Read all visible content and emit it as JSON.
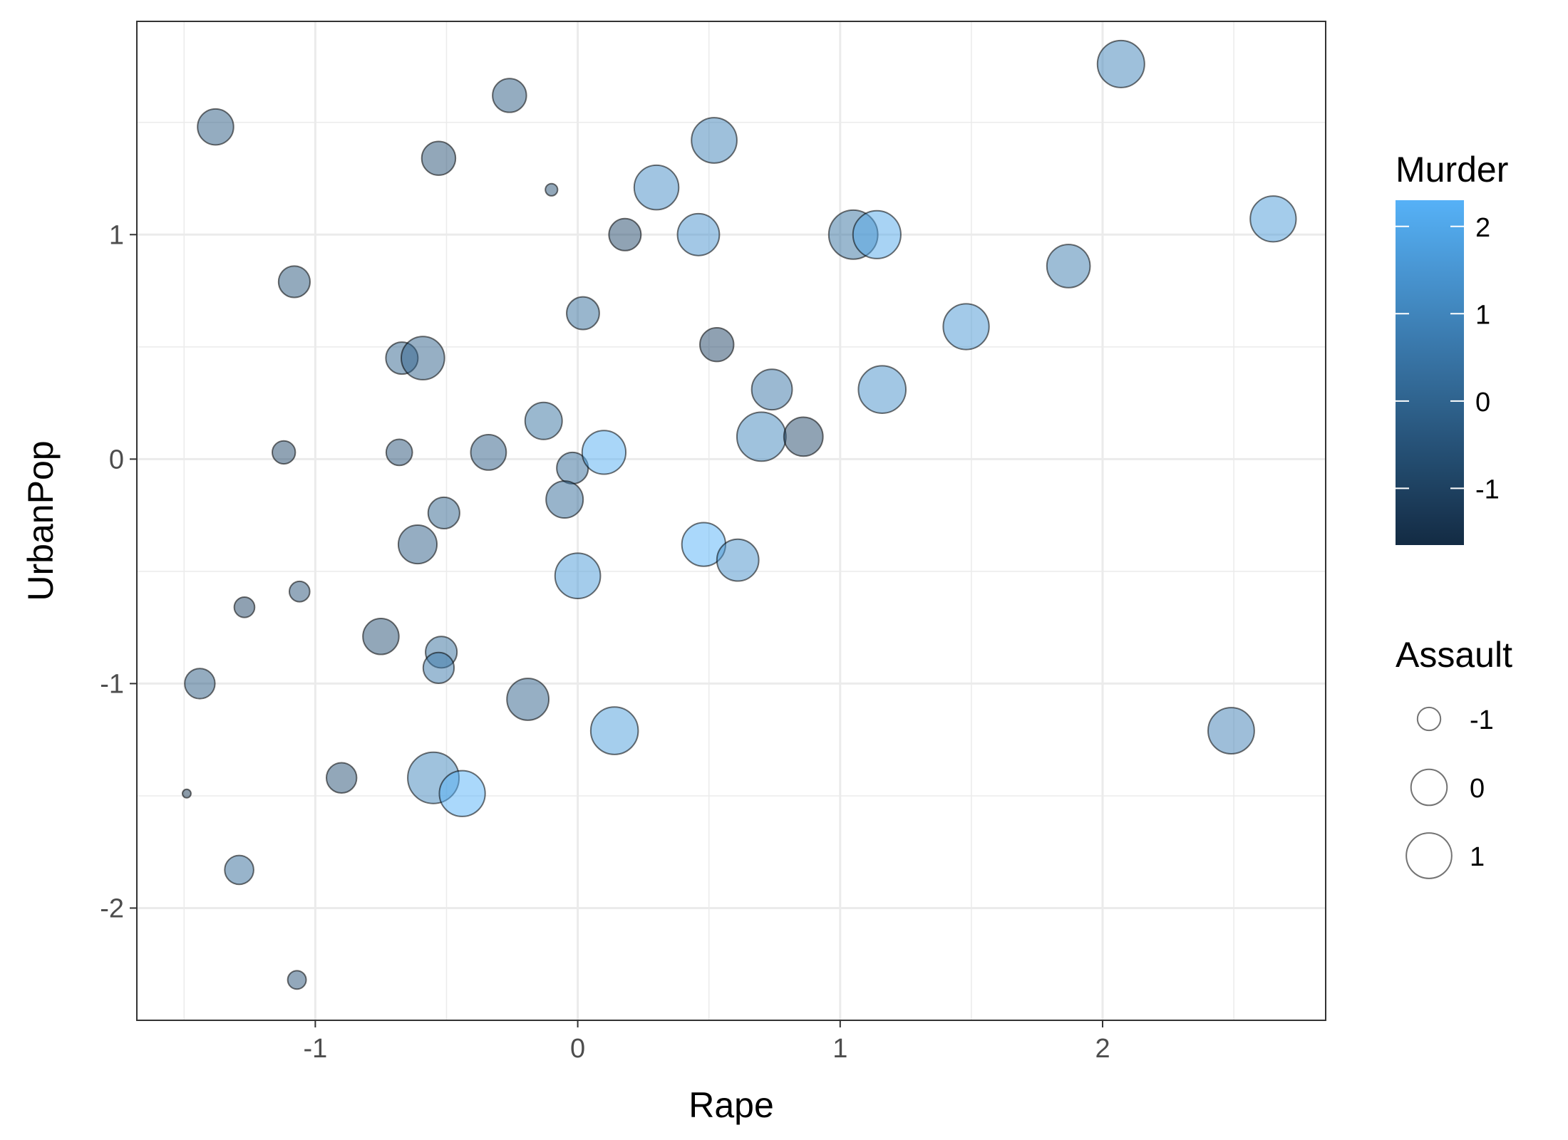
{
  "chart_data": {
    "type": "scatter",
    "xlabel": "Rape",
    "ylabel": "UrbanPop",
    "xlim": [
      -1.68,
      2.85
    ],
    "ylim": [
      -2.5,
      1.95
    ],
    "x_ticks": [
      -1,
      0,
      1,
      2
    ],
    "y_ticks": [
      -2,
      -1,
      0,
      1
    ],
    "x_tick_labels": [
      "-1",
      "0",
      "1",
      "2"
    ],
    "y_tick_labels": [
      "-2",
      "-1",
      "0",
      "1"
    ],
    "grid": true,
    "theme": "bw",
    "point_alpha": 0.5,
    "point_outline_color": "#000000",
    "color_legend": {
      "title": "Murder",
      "variable": "Murder",
      "range": [
        -1.65,
        2.3
      ],
      "breaks": [
        -1,
        0,
        1,
        2
      ],
      "labels": [
        "-1",
        "0",
        "1",
        "2"
      ],
      "low_color": "#132B43",
      "high_color": "#56B1F7",
      "placement": "right"
    },
    "size_legend": {
      "title": "Assault",
      "variable": "Assault",
      "breaks": [
        -1,
        0,
        1
      ],
      "labels": [
        "-1",
        "0",
        "1"
      ],
      "placement": "right"
    },
    "points": [
      {
        "x": -1.38,
        "y": 1.48,
        "murder": -0.3,
        "assault": 0.0
      },
      {
        "x": -0.26,
        "y": 1.62,
        "murder": -0.3,
        "assault": -0.2
      },
      {
        "x": -0.53,
        "y": 1.34,
        "murder": -0.6,
        "assault": -0.2
      },
      {
        "x": -0.1,
        "y": 1.2,
        "murder": -0.6,
        "assault": -1.5
      },
      {
        "x": 0.52,
        "y": 1.42,
        "murder": 0.9,
        "assault": 1.0
      },
      {
        "x": 0.3,
        "y": 1.21,
        "murder": 1.2,
        "assault": 0.9
      },
      {
        "x": 0.18,
        "y": 1.0,
        "murder": -0.8,
        "assault": -0.35
      },
      {
        "x": 0.46,
        "y": 1.0,
        "murder": 1.4,
        "assault": 0.6
      },
      {
        "x": 1.05,
        "y": 1.0,
        "murder": 0.4,
        "assault": 1.45
      },
      {
        "x": 1.14,
        "y": 1.0,
        "murder": 2.0,
        "assault": 1.3
      },
      {
        "x": 2.07,
        "y": 1.76,
        "murder": 0.9,
        "assault": 1.2
      },
      {
        "x": 2.65,
        "y": 1.07,
        "murder": 1.6,
        "assault": 1.05
      },
      {
        "x": -1.08,
        "y": 0.79,
        "murder": -0.4,
        "assault": -0.4
      },
      {
        "x": 0.02,
        "y": 0.65,
        "murder": 0.3,
        "assault": -0.3
      },
      {
        "x": -0.67,
        "y": 0.45,
        "murder": 0.0,
        "assault": -0.35
      },
      {
        "x": -0.59,
        "y": 0.45,
        "murder": -0.1,
        "assault": 0.75
      },
      {
        "x": 0.53,
        "y": 0.51,
        "murder": -0.9,
        "assault": -0.2
      },
      {
        "x": 0.74,
        "y": 0.31,
        "murder": 0.5,
        "assault": 0.45
      },
      {
        "x": 1.16,
        "y": 0.31,
        "murder": 1.3,
        "assault": 1.25
      },
      {
        "x": 1.48,
        "y": 0.59,
        "murder": 1.5,
        "assault": 1.05
      },
      {
        "x": 1.87,
        "y": 0.86,
        "murder": 0.7,
        "assault": 0.75
      },
      {
        "x": -0.13,
        "y": 0.17,
        "murder": 0.4,
        "assault": 0.1
      },
      {
        "x": -1.12,
        "y": 0.03,
        "murder": -0.8,
        "assault": -1.0
      },
      {
        "x": -0.68,
        "y": 0.03,
        "murder": -0.5,
        "assault": -0.8
      },
      {
        "x": -0.34,
        "y": 0.03,
        "murder": -0.2,
        "assault": -0.05
      },
      {
        "x": -0.02,
        "y": -0.04,
        "murder": 0.2,
        "assault": -0.4
      },
      {
        "x": 0.1,
        "y": 0.03,
        "murder": 2.2,
        "assault": 0.8
      },
      {
        "x": 0.7,
        "y": 0.1,
        "murder": 1.0,
        "assault": 1.45
      },
      {
        "x": 0.86,
        "y": 0.1,
        "murder": -0.8,
        "assault": 0.3
      },
      {
        "x": -0.05,
        "y": -0.18,
        "murder": 0.2,
        "assault": 0.1
      },
      {
        "x": -0.51,
        "y": -0.24,
        "murder": 0.0,
        "assault": -0.4
      },
      {
        "x": -0.61,
        "y": -0.38,
        "murder": -0.2,
        "assault": 0.25
      },
      {
        "x": 0.48,
        "y": -0.38,
        "murder": 2.3,
        "assault": 0.8
      },
      {
        "x": 0.61,
        "y": -0.45,
        "murder": 1.3,
        "assault": 0.6
      },
      {
        "x": 0.0,
        "y": -0.52,
        "murder": 1.6,
        "assault": 1.0
      },
      {
        "x": -1.27,
        "y": -0.66,
        "murder": -0.9,
        "assault": -1.15
      },
      {
        "x": -1.06,
        "y": -0.59,
        "murder": -0.5,
        "assault": -1.15
      },
      {
        "x": -0.75,
        "y": -0.79,
        "murder": -0.6,
        "assault": 0.0
      },
      {
        "x": -0.52,
        "y": -0.86,
        "murder": 0.3,
        "assault": -0.4
      },
      {
        "x": -0.53,
        "y": -0.93,
        "murder": 0.6,
        "assault": -0.45
      },
      {
        "x": -1.44,
        "y": -1.0,
        "murder": -0.3,
        "assault": -0.5
      },
      {
        "x": -0.19,
        "y": -1.07,
        "murder": -0.1,
        "assault": 0.6
      },
      {
        "x": 0.14,
        "y": -1.21,
        "murder": 1.7,
        "assault": 1.25
      },
      {
        "x": 2.49,
        "y": -1.21,
        "murder": 0.8,
        "assault": 1.1
      },
      {
        "x": -0.9,
        "y": -1.42,
        "murder": -0.6,
        "assault": -0.5
      },
      {
        "x": -0.55,
        "y": -1.42,
        "murder": 1.0,
        "assault": 1.75
      },
      {
        "x": -0.44,
        "y": -1.49,
        "murder": 2.3,
        "assault": 1.05
      },
      {
        "x": -1.49,
        "y": -1.49,
        "murder": -1.3,
        "assault": -1.6
      },
      {
        "x": -1.29,
        "y": -1.83,
        "murder": 0.2,
        "assault": -0.6
      },
      {
        "x": -1.07,
        "y": -2.32,
        "murder": -0.5,
        "assault": -1.25
      }
    ]
  }
}
